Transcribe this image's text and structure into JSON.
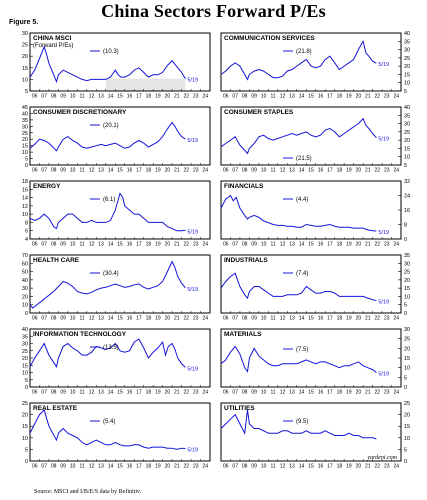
{
  "page_title": "China Sectors Forward P/Es",
  "figure_label": "Figure 5.",
  "source_note": "Source: MSCI and I/B/E/S data by Refinitiv.",
  "watermark": "yardeni.com",
  "colors": {
    "line": "#1515d8",
    "shade": "#d3d3d3",
    "frame": "#000000"
  },
  "x_tick_labels": [
    "06",
    "07",
    "08",
    "09",
    "10",
    "11",
    "12",
    "13",
    "14",
    "15",
    "16",
    "17",
    "18",
    "19",
    "20",
    "21",
    "22",
    "23",
    "24"
  ],
  "chart_data": [
    {
      "type": "line",
      "title": "CHINA MSCI",
      "subtitle": "(Forward P/Es)",
      "ylim": [
        5,
        30
      ],
      "yticks": [
        5,
        10,
        15,
        20,
        25,
        30
      ],
      "axis_side": "left",
      "shaded_until": [
        2022.4,
        10.3
      ],
      "legend_value": "(10.3)",
      "end_label": "5/19",
      "x": [
        2006,
        2006.5,
        2007,
        2007.5,
        2007.8,
        2008,
        2008.5,
        2008.8,
        2009,
        2009.5,
        2010,
        2010.5,
        2011,
        2011.5,
        2012,
        2012.5,
        2013,
        2013.5,
        2014,
        2014.5,
        2015,
        2015.3,
        2015.6,
        2016,
        2016.5,
        2017,
        2017.5,
        2018,
        2018.5,
        2019,
        2019.5,
        2020,
        2020.5,
        2021,
        2021.2,
        2021.6,
        2022,
        2022.4
      ],
      "values": [
        11,
        14,
        19,
        24,
        20,
        17,
        12,
        9,
        12,
        14,
        13,
        12,
        11,
        10,
        9.5,
        10,
        10,
        10,
        10,
        11,
        14,
        12,
        11,
        11,
        12,
        14,
        15,
        13,
        11,
        12,
        12,
        13,
        16,
        18,
        17,
        15,
        13,
        10.3
      ]
    },
    {
      "type": "line",
      "title": "COMMUNICATION SERVICES",
      "ylim": [
        5,
        40
      ],
      "yticks": [
        5,
        10,
        15,
        20,
        25,
        30,
        35,
        40
      ],
      "axis_side": "right",
      "legend_value": "(21.8)",
      "end_label": "5/19",
      "x": [
        2006,
        2006.5,
        2007,
        2007.5,
        2008,
        2008.8,
        2009,
        2009.5,
        2010,
        2010.5,
        2011,
        2011.5,
        2012,
        2012.5,
        2013,
        2013.5,
        2014,
        2014.5,
        2015,
        2015.5,
        2016,
        2016.5,
        2017,
        2017.5,
        2018,
        2018.5,
        2019,
        2019.5,
        2020,
        2020.5,
        2021,
        2021.3,
        2021.6,
        2022,
        2022.4
      ],
      "values": [
        15,
        17,
        20,
        22,
        20,
        12,
        15,
        17,
        18,
        17,
        15,
        13,
        13,
        14,
        17,
        18,
        20,
        22,
        24,
        20,
        19,
        20,
        24,
        26,
        22,
        18,
        20,
        22,
        24,
        30,
        35,
        28,
        26,
        23,
        21.8
      ]
    },
    {
      "type": "line",
      "title": "CONSUMER DISCRETIONARY",
      "ylim": [
        0,
        45
      ],
      "yticks": [
        0,
        5,
        10,
        15,
        20,
        25,
        30,
        35,
        40,
        45
      ],
      "axis_side": "left",
      "legend_value": "(20.1)",
      "end_label": "5/19",
      "x": [
        2006,
        2006.5,
        2007,
        2007.5,
        2008,
        2008.8,
        2009,
        2009.5,
        2010,
        2010.5,
        2011,
        2011.5,
        2012,
        2012.5,
        2013,
        2013.5,
        2014,
        2014.5,
        2015,
        2015.5,
        2016,
        2016.5,
        2017,
        2017.5,
        2018,
        2018.5,
        2019,
        2019.5,
        2020,
        2020.5,
        2021,
        2021.3,
        2021.6,
        2022,
        2022.4
      ],
      "values": [
        13,
        16,
        20,
        19,
        17,
        11,
        14,
        20,
        22,
        19,
        17,
        14,
        13,
        14,
        15,
        16,
        15,
        16,
        17,
        15,
        13,
        14,
        17,
        19,
        17,
        14,
        16,
        18,
        22,
        28,
        33,
        30,
        26,
        22,
        20.1
      ]
    },
    {
      "type": "line",
      "title": "CONSUMER STAPLES",
      "ylim": [
        5,
        40
      ],
      "yticks": [
        5,
        10,
        15,
        20,
        25,
        30,
        35,
        40
      ],
      "axis_side": "right",
      "legend_value": "(21.5)",
      "end_label": "5/19",
      "x": [
        2006,
        2006.5,
        2007,
        2007.5,
        2008,
        2008.8,
        2009,
        2009.5,
        2010,
        2010.5,
        2011,
        2011.5,
        2012,
        2012.5,
        2013,
        2013.5,
        2014,
        2014.5,
        2015,
        2015.5,
        2016,
        2016.5,
        2017,
        2017.5,
        2018,
        2018.5,
        2019,
        2019.5,
        2020,
        2020.5,
        2021,
        2021.3,
        2021.6,
        2022,
        2022.4
      ],
      "values": [
        16,
        18,
        20,
        22,
        17,
        12,
        15,
        18,
        22,
        23,
        21,
        20,
        21,
        22,
        23,
        24,
        23,
        24,
        25,
        23,
        22,
        23,
        26,
        27,
        25,
        22,
        24,
        26,
        28,
        30,
        33,
        29,
        27,
        24,
        21.5
      ]
    },
    {
      "type": "line",
      "title": "ENERGY",
      "ylim": [
        4,
        18
      ],
      "yticks": [
        4,
        6,
        8,
        10,
        12,
        14,
        16,
        18
      ],
      "axis_side": "left",
      "legend_value": "(6.1)",
      "end_label": "5/19",
      "x": [
        2006,
        2006.5,
        2007,
        2007.5,
        2008,
        2008.5,
        2008.8,
        2009,
        2009.5,
        2010,
        2010.5,
        2011,
        2011.5,
        2012,
        2012.5,
        2013,
        2013.5,
        2014,
        2014.5,
        2015,
        2015.5,
        2015.8,
        2016,
        2016.5,
        2017,
        2017.5,
        2018,
        2018.5,
        2019,
        2019.5,
        2020,
        2020.5,
        2021,
        2021.5,
        2022,
        2022.4
      ],
      "values": [
        9,
        8.5,
        9,
        10,
        9,
        7,
        6.5,
        8,
        9,
        10,
        10,
        9,
        8,
        8,
        8.5,
        8,
        8,
        8,
        8.5,
        11,
        15,
        14,
        12,
        11,
        10,
        10,
        9,
        8,
        8,
        8,
        8,
        7,
        6.5,
        6,
        6,
        6.1
      ]
    },
    {
      "type": "line",
      "title": "FINANCIALS",
      "ylim": [
        0,
        32
      ],
      "yticks": [
        0,
        8,
        16,
        24,
        32
      ],
      "axis_side": "right",
      "legend_value": "(4.4)",
      "end_label": "5/19",
      "x": [
        2006,
        2006.5,
        2007,
        2007.3,
        2007.6,
        2008,
        2008.5,
        2008.8,
        2009,
        2009.5,
        2010,
        2010.5,
        2011,
        2011.5,
        2012,
        2012.5,
        2013,
        2013.5,
        2014,
        2014.5,
        2015,
        2015.5,
        2016,
        2016.5,
        2017,
        2017.5,
        2018,
        2018.5,
        2019,
        2019.5,
        2020,
        2020.5,
        2021,
        2021.5,
        2022,
        2022.4
      ],
      "values": [
        17,
        22,
        24,
        21,
        23,
        17,
        13,
        11,
        12,
        13,
        12,
        10,
        9,
        8,
        7.5,
        7.5,
        7,
        7,
        6.5,
        6.5,
        8,
        7.5,
        7,
        7,
        7.5,
        8,
        7,
        6.5,
        6.5,
        6.5,
        6,
        6,
        6,
        5,
        4.6,
        4.4
      ]
    },
    {
      "type": "line",
      "title": "HEALTH CARE",
      "ylim": [
        0,
        70
      ],
      "yticks": [
        0,
        10,
        20,
        30,
        40,
        50,
        60,
        70
      ],
      "axis_side": "left",
      "legend_value": "(30.4)",
      "end_label": "5/19",
      "x": [
        2006,
        2006.3,
        2008.5,
        2009,
        2009.5,
        2010,
        2010.5,
        2011,
        2011.5,
        2012,
        2012.5,
        2013,
        2013.5,
        2014,
        2014.5,
        2015,
        2015.5,
        2016,
        2016.5,
        2017,
        2017.5,
        2018,
        2018.5,
        2019,
        2019.5,
        2020,
        2020.5,
        2021,
        2021.3,
        2021.6,
        2022,
        2022.4
      ],
      "values": [
        10,
        6,
        26,
        32,
        38,
        36,
        32,
        26,
        24,
        23,
        25,
        28,
        30,
        31,
        33,
        35,
        33,
        31,
        32,
        34,
        35,
        31,
        29,
        31,
        33,
        38,
        50,
        62,
        55,
        44,
        36,
        30.4
      ]
    },
    {
      "type": "line",
      "title": "INDUSTRIALS",
      "ylim": [
        0,
        35
      ],
      "yticks": [
        0,
        5,
        10,
        15,
        20,
        25,
        30,
        35
      ],
      "axis_side": "right",
      "legend_value": "(7.4)",
      "end_label": "5/19",
      "x": [
        2006,
        2006.5,
        2007,
        2007.5,
        2007.8,
        2008,
        2008.5,
        2008.8,
        2009,
        2009.5,
        2010,
        2010.5,
        2011,
        2011.5,
        2012,
        2012.5,
        2013,
        2013.5,
        2014,
        2014.5,
        2015,
        2015.5,
        2016,
        2016.5,
        2017,
        2017.5,
        2018,
        2018.5,
        2019,
        2019.5,
        2020,
        2020.5,
        2021,
        2021.5,
        2022,
        2022.4
      ],
      "values": [
        15,
        19,
        22,
        24,
        19,
        16,
        11,
        9,
        13,
        16,
        16,
        14,
        12,
        10,
        10,
        10,
        11,
        11,
        11,
        12,
        16,
        14,
        12,
        12,
        13,
        13,
        12,
        10,
        10,
        10,
        10,
        10,
        10,
        9,
        8,
        7.4
      ]
    },
    {
      "type": "line",
      "title": "INFORMATION TECHNOLOGY",
      "ylim": [
        0,
        40
      ],
      "yticks": [
        0,
        5,
        10,
        15,
        20,
        25,
        30,
        35,
        40
      ],
      "axis_side": "left",
      "legend_value": "(13.5)",
      "end_label": "5/19",
      "x": [
        2006,
        2006.5,
        2007,
        2007.5,
        2008,
        2008.8,
        2009,
        2009.5,
        2010,
        2010.5,
        2011,
        2011.5,
        2012,
        2012.5,
        2013,
        2013.5,
        2014,
        2014.5,
        2015,
        2015.5,
        2016,
        2016.5,
        2017,
        2017.5,
        2018,
        2018.5,
        2019,
        2019.5,
        2020,
        2020.3,
        2020.6,
        2021,
        2021.3,
        2021.6,
        2022,
        2022.4
      ],
      "values": [
        14,
        20,
        25,
        30,
        22,
        14,
        20,
        28,
        30,
        27,
        25,
        22,
        22,
        24,
        28,
        27,
        26,
        27,
        30,
        25,
        24,
        25,
        31,
        33,
        27,
        20,
        24,
        27,
        31,
        22,
        28,
        30,
        26,
        20,
        16,
        13.5
      ]
    },
    {
      "type": "line",
      "title": "MATERIALS",
      "ylim": [
        0,
        30
      ],
      "yticks": [
        0,
        5,
        10,
        15,
        20,
        25,
        30
      ],
      "axis_side": "right",
      "legend_value": "(7.5)",
      "end_label": "5/19",
      "x": [
        2006,
        2006.5,
        2007,
        2007.5,
        2008,
        2008.5,
        2008.8,
        2009,
        2009.5,
        2010,
        2010.5,
        2011,
        2011.5,
        2012,
        2012.5,
        2013,
        2013.5,
        2014,
        2014.5,
        2015,
        2015.5,
        2016,
        2016.5,
        2017,
        2017.5,
        2018,
        2018.5,
        2019,
        2019.5,
        2020,
        2020.5,
        2021,
        2021.5,
        2022,
        2022.4
      ],
      "values": [
        12,
        14,
        18,
        21,
        17,
        10,
        8,
        15,
        20,
        16,
        14,
        12,
        11,
        11,
        12,
        12,
        12,
        12,
        13,
        14,
        13,
        12,
        13,
        13,
        12,
        11,
        10,
        11,
        11,
        12,
        13,
        11,
        10,
        9,
        7.5
      ]
    },
    {
      "type": "line",
      "title": "REAL ESTATE",
      "ylim": [
        0,
        25
      ],
      "yticks": [
        0,
        5,
        10,
        15,
        20,
        25
      ],
      "axis_side": "left",
      "legend_value": "(5.4)",
      "end_label": "5/19",
      "x": [
        2006,
        2006.5,
        2007,
        2007.5,
        2008,
        2008.8,
        2009,
        2009.5,
        2010,
        2010.5,
        2011,
        2011.5,
        2012,
        2012.5,
        2013,
        2013.5,
        2014,
        2014.5,
        2015,
        2015.5,
        2016,
        2016.5,
        2017,
        2017.5,
        2018,
        2018.5,
        2019,
        2019.5,
        2020,
        2020.5,
        2021,
        2021.5,
        2022,
        2022.4
      ],
      "values": [
        12,
        16,
        20,
        22,
        15,
        9,
        12,
        14,
        12,
        11,
        10,
        8,
        7,
        8,
        9,
        8,
        7,
        7,
        8,
        7,
        6.5,
        6.5,
        7,
        7,
        6,
        5.5,
        6,
        6,
        6,
        5.5,
        5.5,
        5,
        5.5,
        5.4
      ]
    },
    {
      "type": "line",
      "title": "UTILITIES",
      "ylim": [
        0,
        25
      ],
      "yticks": [
        0,
        5,
        10,
        15,
        20,
        25
      ],
      "axis_side": "right",
      "legend_value": "(9.5)",
      "end_label": "",
      "x": [
        2006,
        2006.5,
        2007,
        2007.5,
        2008,
        2008.5,
        2008.8,
        2009,
        2009.5,
        2010,
        2010.5,
        2011,
        2011.5,
        2012,
        2012.5,
        2013,
        2013.5,
        2014,
        2014.5,
        2015,
        2015.5,
        2016,
        2016.5,
        2017,
        2017.5,
        2018,
        2018.5,
        2019,
        2019.5,
        2020,
        2020.5,
        2021,
        2021.5,
        2022,
        2022.4
      ],
      "values": [
        14,
        16,
        18,
        20,
        16,
        12,
        22,
        16,
        14,
        14,
        13,
        12,
        12,
        12,
        13,
        13,
        12,
        12,
        12,
        13,
        12,
        12,
        12,
        13,
        12,
        11,
        11,
        11,
        12,
        11,
        11,
        10,
        10,
        10,
        9.5
      ]
    }
  ]
}
